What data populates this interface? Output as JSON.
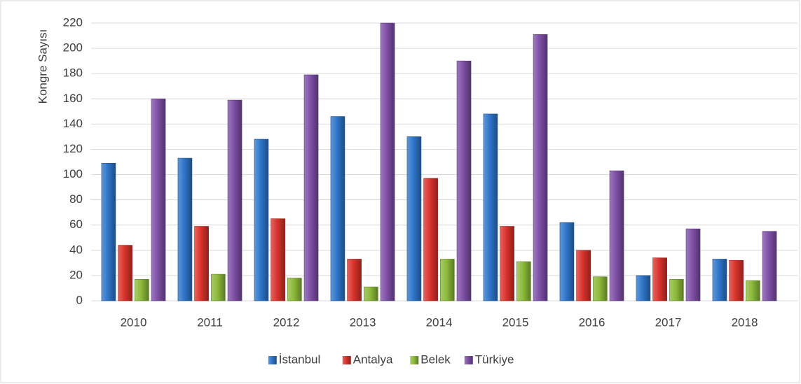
{
  "chart_data": {
    "type": "bar",
    "y_label": "Kongre Sayısı",
    "categories": [
      "2010",
      "2011",
      "2012",
      "2013",
      "2014",
      "2015",
      "2016",
      "2017",
      "2018"
    ],
    "series": [
      {
        "name": "İstanbul",
        "color": "#2e75c9",
        "values": [
          109,
          113,
          128,
          146,
          130,
          148,
          62,
          20,
          33
        ]
      },
      {
        "name": "Antalya",
        "color": "#d9322b",
        "values": [
          44,
          59,
          65,
          33,
          97,
          59,
          40,
          34,
          32
        ]
      },
      {
        "name": "Belek",
        "color": "#8cba3a",
        "values": [
          17,
          21,
          18,
          11,
          33,
          31,
          19,
          17,
          16
        ]
      },
      {
        "name": "Türkiye",
        "color": "#7e4fa6",
        "values": [
          160,
          159,
          179,
          220,
          190,
          211,
          103,
          57,
          55
        ]
      }
    ],
    "ylim": [
      0,
      220
    ],
    "yticks": [
      0,
      20,
      40,
      60,
      80,
      100,
      120,
      140,
      160,
      180,
      200,
      220
    ],
    "grid": true,
    "legend": "bottom"
  }
}
